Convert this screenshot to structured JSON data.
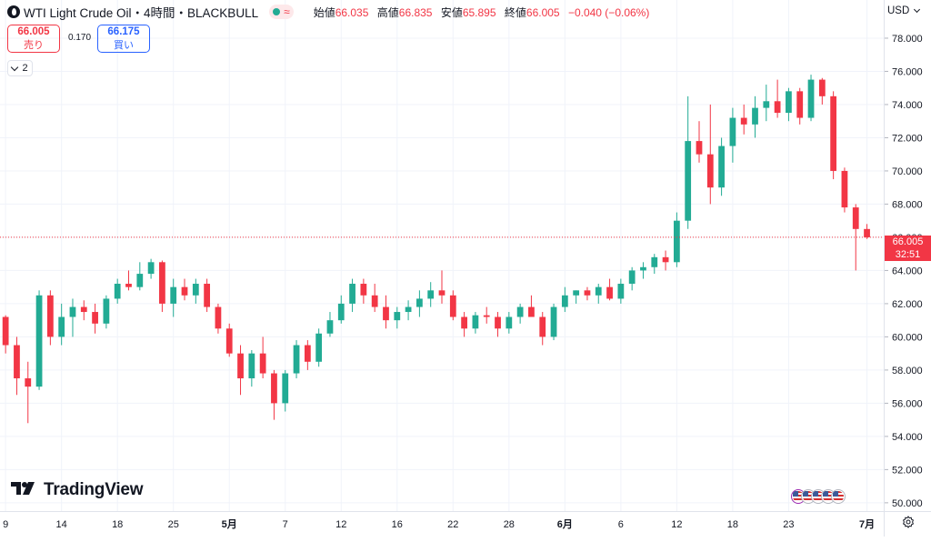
{
  "legend": {
    "symbol": "WTI Light Crude Oil・4時間・BLACKBULL",
    "open_label": "始値",
    "open": "66.035",
    "high_label": "高値",
    "high": "66.835",
    "low_label": "安値",
    "low": "65.895",
    "close_label": "終値",
    "close": "66.005",
    "change": "−0.040 (−0.06%)",
    "status_icon": "wave-icon"
  },
  "trade": {
    "sell_price": "66.005",
    "sell_label": "売り",
    "spread": "0.170",
    "buy_price": "66.175",
    "buy_label": "買い"
  },
  "indicators_toggle": {
    "count": "2"
  },
  "currency": "USD",
  "last_price": {
    "price": "66.005",
    "countdown": "32:51"
  },
  "logo": {
    "text": "TradingView"
  },
  "colors": {
    "up": "#22ab94",
    "down": "#f23645",
    "grid": "#f0f3fa"
  },
  "chart_data": {
    "type": "candlestick",
    "title": "WTI Light Crude Oil・4時間・BLACKBULL",
    "y_ticks": [
      50,
      52,
      54,
      56,
      58,
      60,
      62,
      64,
      66,
      68,
      70,
      72,
      74,
      76,
      78
    ],
    "y_tick_labels": [
      "50.000",
      "52.000",
      "54.000",
      "56.000",
      "58.000",
      "60.000",
      "62.000",
      "64.000",
      "66.000",
      "68.000",
      "70.000",
      "72.000",
      "74.000",
      "76.000",
      "78.000"
    ],
    "ylim": [
      49.5,
      80.3
    ],
    "x_range": [
      0,
      79
    ],
    "x_ticks": [
      {
        "i": 0.5,
        "label": "9"
      },
      {
        "i": 5.5,
        "label": "14"
      },
      {
        "i": 10.5,
        "label": "18"
      },
      {
        "i": 15.5,
        "label": "25"
      },
      {
        "i": 20.5,
        "label": "5月"
      },
      {
        "i": 25.5,
        "label": "7"
      },
      {
        "i": 30.5,
        "label": "12"
      },
      {
        "i": 35.5,
        "label": "16"
      },
      {
        "i": 40.5,
        "label": "22"
      },
      {
        "i": 45.5,
        "label": "28"
      },
      {
        "i": 50.5,
        "label": "6月"
      },
      {
        "i": 55.5,
        "label": "6"
      },
      {
        "i": 60.5,
        "label": "12"
      },
      {
        "i": 65.5,
        "label": "18"
      },
      {
        "i": 70.5,
        "label": "23"
      },
      {
        "i": 77.5,
        "label": "7月"
      }
    ],
    "last_price": 66.005,
    "candles": [
      [
        61.2,
        61.3,
        59.0,
        59.5
      ],
      [
        59.5,
        60.0,
        56.5,
        57.5
      ],
      [
        57.5,
        58.5,
        54.8,
        57.0
      ],
      [
        57.0,
        62.8,
        56.8,
        62.5
      ],
      [
        62.5,
        62.8,
        59.5,
        60.0
      ],
      [
        60.0,
        62.0,
        59.5,
        61.2
      ],
      [
        61.2,
        62.3,
        60.0,
        61.8
      ],
      [
        61.8,
        62.2,
        61.0,
        61.5
      ],
      [
        61.5,
        62.0,
        60.2,
        60.8
      ],
      [
        60.8,
        62.5,
        60.5,
        62.3
      ],
      [
        62.3,
        63.5,
        62.0,
        63.2
      ],
      [
        63.2,
        64.0,
        62.8,
        63.0
      ],
      [
        63.0,
        64.5,
        62.8,
        63.8
      ],
      [
        63.8,
        64.7,
        63.5,
        64.5
      ],
      [
        64.5,
        64.6,
        61.5,
        62.0
      ],
      [
        62.0,
        63.5,
        61.2,
        63.0
      ],
      [
        63.0,
        63.5,
        62.2,
        62.5
      ],
      [
        62.5,
        63.5,
        62.0,
        63.2
      ],
      [
        63.2,
        63.5,
        61.5,
        61.8
      ],
      [
        61.8,
        62.0,
        60.2,
        60.5
      ],
      [
        60.5,
        60.8,
        58.8,
        59.0
      ],
      [
        59.0,
        59.5,
        56.5,
        57.5
      ],
      [
        57.5,
        59.2,
        57.0,
        59.0
      ],
      [
        59.0,
        60.0,
        57.5,
        57.8
      ],
      [
        57.8,
        58.0,
        55.0,
        56.0
      ],
      [
        56.0,
        58.0,
        55.5,
        57.8
      ],
      [
        57.8,
        59.8,
        57.5,
        59.5
      ],
      [
        59.5,
        59.8,
        58.0,
        58.5
      ],
      [
        58.5,
        60.5,
        58.2,
        60.2
      ],
      [
        60.2,
        61.5,
        60.0,
        61.0
      ],
      [
        61.0,
        62.5,
        60.8,
        62.0
      ],
      [
        62.0,
        63.5,
        61.5,
        63.2
      ],
      [
        63.2,
        63.5,
        62.0,
        62.5
      ],
      [
        62.5,
        63.2,
        61.5,
        61.8
      ],
      [
        61.8,
        62.5,
        60.5,
        61.0
      ],
      [
        61.0,
        61.8,
        60.5,
        61.5
      ],
      [
        61.5,
        62.2,
        61.0,
        61.8
      ],
      [
        61.8,
        62.8,
        61.2,
        62.3
      ],
      [
        62.3,
        63.3,
        61.8,
        62.8
      ],
      [
        62.8,
        64.0,
        62.0,
        62.5
      ],
      [
        62.5,
        62.8,
        61.0,
        61.2
      ],
      [
        61.2,
        61.5,
        60.0,
        60.5
      ],
      [
        60.5,
        61.5,
        60.2,
        61.3
      ],
      [
        61.3,
        61.8,
        60.8,
        61.2
      ],
      [
        61.2,
        61.5,
        60.0,
        60.5
      ],
      [
        60.5,
        61.5,
        60.2,
        61.2
      ],
      [
        61.2,
        62.0,
        60.8,
        61.8
      ],
      [
        61.8,
        62.5,
        61.5,
        61.2
      ],
      [
        61.2,
        61.5,
        59.5,
        60.0
      ],
      [
        60.0,
        62.0,
        59.8,
        61.8
      ],
      [
        61.8,
        63.0,
        61.5,
        62.5
      ],
      [
        62.5,
        62.8,
        62.0,
        62.8
      ],
      [
        62.8,
        63.0,
        62.2,
        62.5
      ],
      [
        62.5,
        63.2,
        62.0,
        63.0
      ],
      [
        63.0,
        63.5,
        62.2,
        62.3
      ],
      [
        62.3,
        63.5,
        62.0,
        63.2
      ],
      [
        63.2,
        64.2,
        62.8,
        64.0
      ],
      [
        64.0,
        64.5,
        63.5,
        64.2
      ],
      [
        64.2,
        65.0,
        63.8,
        64.8
      ],
      [
        64.8,
        65.2,
        64.0,
        64.5
      ],
      [
        64.5,
        67.5,
        64.2,
        67.0
      ],
      [
        67.0,
        74.5,
        66.5,
        71.8
      ],
      [
        71.8,
        73.0,
        70.5,
        71.0
      ],
      [
        71.0,
        74.0,
        68.0,
        69.0
      ],
      [
        69.0,
        72.0,
        68.5,
        71.5
      ],
      [
        71.5,
        73.8,
        70.5,
        73.2
      ],
      [
        73.2,
        74.0,
        72.2,
        72.8
      ],
      [
        72.8,
        74.5,
        72.0,
        73.8
      ],
      [
        73.8,
        75.2,
        73.0,
        74.2
      ],
      [
        74.2,
        75.5,
        73.2,
        73.5
      ],
      [
        73.5,
        75.0,
        73.0,
        74.8
      ],
      [
        74.8,
        75.0,
        72.8,
        73.2
      ],
      [
        73.2,
        75.8,
        73.0,
        75.5
      ],
      [
        75.5,
        75.6,
        74.0,
        74.5
      ],
      [
        74.5,
        74.8,
        69.5,
        70.0
      ],
      [
        70.0,
        70.2,
        67.5,
        67.8
      ],
      [
        67.8,
        68.0,
        64.0,
        66.5
      ],
      [
        66.5,
        66.8,
        65.9,
        66.0
      ]
    ]
  }
}
